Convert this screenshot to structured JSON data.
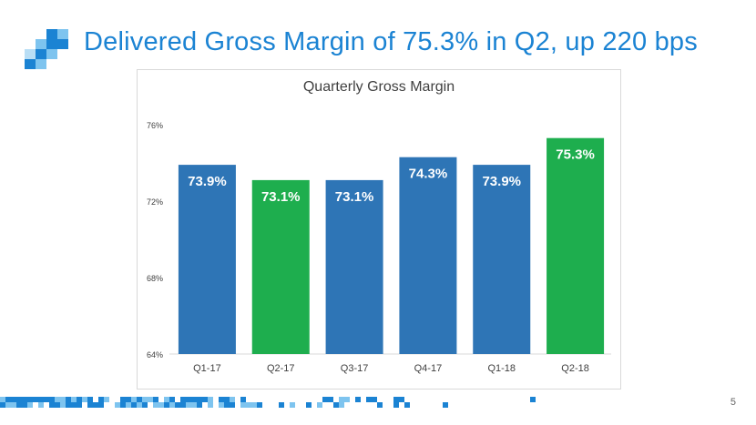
{
  "slide": {
    "title": "Delivered Gross Margin of 75.3% in Q2, up 220 bps",
    "page_number": "5",
    "colors": {
      "title": "#1b83d3",
      "bar_blue": "#2e75b6",
      "bar_green": "#1eae4e",
      "logo_light": "#7ec4ef",
      "logo_dark": "#1b83d3"
    }
  },
  "chart_data": {
    "type": "bar",
    "title": "Quarterly Gross Margin",
    "categories": [
      "Q1-17",
      "Q2-17",
      "Q3-17",
      "Q4-17",
      "Q1-18",
      "Q2-18"
    ],
    "values": [
      73.9,
      73.1,
      73.1,
      74.3,
      73.9,
      75.3
    ],
    "labels": [
      "73.9%",
      "73.1%",
      "73.1%",
      "74.3%",
      "73.9%",
      "75.3%"
    ],
    "colors": [
      "#2e75b6",
      "#1eae4e",
      "#2e75b6",
      "#2e75b6",
      "#2e75b6",
      "#1eae4e"
    ],
    "ylim": [
      64,
      76
    ],
    "yticks": [
      64,
      68,
      72,
      76
    ],
    "ytick_labels": [
      "64%",
      "68%",
      "72%",
      "76%"
    ],
    "xlabel": "",
    "ylabel": "",
    "grid": false,
    "legend": "none"
  }
}
